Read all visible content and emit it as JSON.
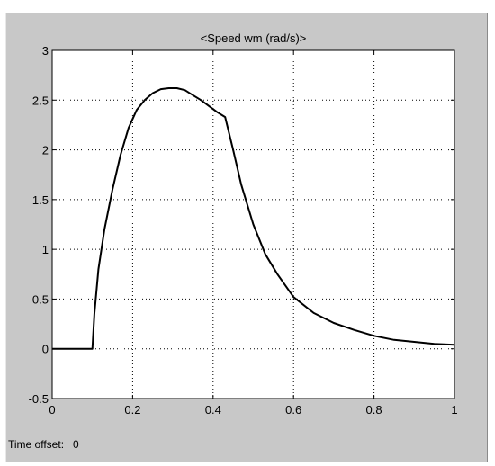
{
  "chart_data": {
    "type": "line",
    "title": "<Speed wm (rad/s)>",
    "xlim": [
      0,
      1
    ],
    "ylim": [
      -0.5,
      3
    ],
    "xticks": [
      0,
      0.2,
      0.4,
      0.6,
      0.8,
      1
    ],
    "xtick_labels": [
      "0",
      "0.2",
      "0.4",
      "0.6",
      "0.8",
      "1"
    ],
    "yticks": [
      -0.5,
      0,
      0.5,
      1,
      1.5,
      2,
      2.5,
      3
    ],
    "ytick_labels": [
      "-0.5",
      "0",
      "0.5",
      "1",
      "1.5",
      "2",
      "2.5",
      "3"
    ],
    "grid": true,
    "series": [
      {
        "x": [
          0,
          0.1,
          0.105,
          0.115,
          0.13,
          0.15,
          0.17,
          0.19,
          0.21,
          0.23,
          0.25,
          0.27,
          0.29,
          0.31,
          0.33,
          0.35,
          0.37,
          0.39,
          0.41,
          0.43,
          0.45,
          0.47,
          0.5,
          0.53,
          0.56,
          0.6,
          0.65,
          0.7,
          0.75,
          0.8,
          0.85,
          0.9,
          0.95,
          1.0
        ],
        "y": [
          0,
          0,
          0.35,
          0.8,
          1.2,
          1.6,
          1.95,
          2.22,
          2.4,
          2.5,
          2.57,
          2.61,
          2.62,
          2.62,
          2.6,
          2.55,
          2.5,
          2.44,
          2.38,
          2.33,
          2.0,
          1.65,
          1.25,
          0.95,
          0.75,
          0.52,
          0.36,
          0.26,
          0.19,
          0.13,
          0.09,
          0.07,
          0.05,
          0.04
        ]
      }
    ],
    "colors": {
      "line": "#000000",
      "axes_bg": "#ffffff",
      "frame_bg": "#c8c8c8",
      "grid": "#000000"
    }
  },
  "footer": {
    "time_offset_label": "Time offset:",
    "time_offset_value": "0"
  }
}
